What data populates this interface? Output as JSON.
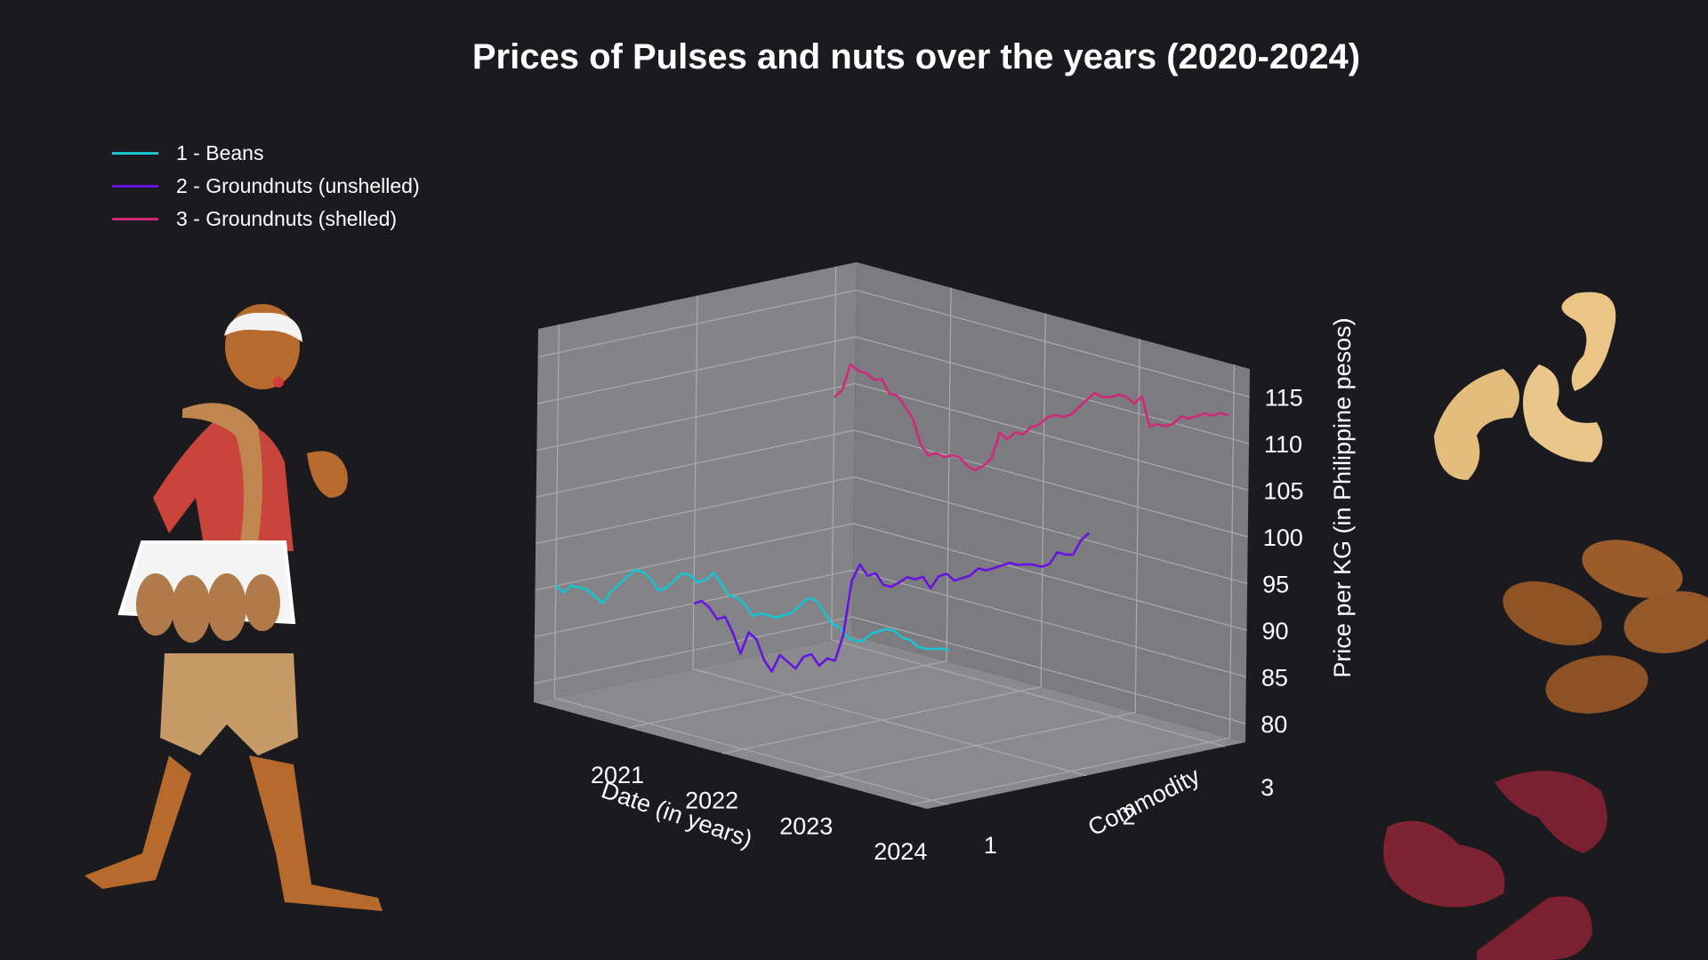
{
  "chart_data": {
    "type": "line",
    "projection": "3d",
    "title": "Prices of Pulses and nuts over the years (2020-2024)",
    "xlabel": "Date (in years)",
    "ylabel": "Commodity",
    "zlabel": "Price per KG (in Philippine pesos)",
    "x_ticks": [
      "2021",
      "2022",
      "2023",
      "2024"
    ],
    "y_ticks": [
      "1",
      "2",
      "3"
    ],
    "z_ticks": [
      "80",
      "85",
      "90",
      "95",
      "100",
      "105",
      "110",
      "115"
    ],
    "xlim": [
      "2020-01",
      "2024-03"
    ],
    "zlim": [
      78,
      118
    ],
    "grid": true,
    "legend_position": "top-left",
    "series": [
      {
        "name": "1 - Beans",
        "commodity": 1,
        "color": "#17c3cf",
        "x": [
          "2020-01",
          "2020-02",
          "2020-03",
          "2020-04",
          "2020-05",
          "2020-06",
          "2020-07",
          "2020-08",
          "2020-09",
          "2020-10",
          "2020-11",
          "2020-12",
          "2021-01",
          "2021-02",
          "2021-03",
          "2021-04",
          "2021-05",
          "2021-06",
          "2021-07",
          "2021-08",
          "2021-09",
          "2021-10",
          "2021-11",
          "2021-12",
          "2022-01",
          "2022-02",
          "2022-03",
          "2022-04",
          "2022-05",
          "2022-06",
          "2022-07",
          "2022-08",
          "2022-09",
          "2022-10",
          "2022-11",
          "2022-12",
          "2023-01",
          "2023-02",
          "2023-03",
          "2023-04",
          "2023-05",
          "2023-06",
          "2023-07",
          "2023-08",
          "2023-09",
          "2023-10",
          "2023-11",
          "2023-12",
          "2024-01",
          "2024-02",
          "2024-03"
        ],
        "values": [
          90,
          89.5,
          90.5,
          90.5,
          90.5,
          90,
          89.5,
          91,
          92,
          93,
          94,
          94,
          93.5,
          92.5,
          93,
          94,
          95,
          95,
          94.5,
          95,
          96,
          95,
          94,
          94,
          93.5,
          92.5,
          93,
          93,
          93,
          93.5,
          94,
          95,
          96,
          96,
          95,
          94,
          93.8,
          93,
          92.8,
          93,
          94,
          94.5,
          95,
          95,
          94.5,
          94.5,
          94,
          94,
          94.2,
          94.5,
          94.5
        ]
      },
      {
        "name": "2 - Groundnuts (unshelled)",
        "commodity": 2,
        "color": "#6814e0",
        "x": [
          "2020-01",
          "2020-02",
          "2020-03",
          "2020-04",
          "2020-05",
          "2020-06",
          "2020-07",
          "2020-08",
          "2020-09",
          "2020-10",
          "2020-11",
          "2020-12",
          "2021-01",
          "2021-02",
          "2021-03",
          "2021-04",
          "2021-05",
          "2021-06",
          "2021-07",
          "2021-08",
          "2021-09",
          "2021-10",
          "2021-11",
          "2021-12",
          "2022-01",
          "2022-02",
          "2022-03",
          "2022-04",
          "2022-05",
          "2022-06",
          "2022-07",
          "2022-08",
          "2022-09",
          "2022-10",
          "2022-11",
          "2022-12",
          "2023-01",
          "2023-02",
          "2023-03",
          "2023-04",
          "2023-05",
          "2023-06",
          "2023-07",
          "2023-08",
          "2023-09",
          "2023-10",
          "2023-11",
          "2023-12",
          "2024-01",
          "2024-02",
          "2024-03"
        ],
        "values": [
          85,
          85.5,
          85,
          84,
          84.5,
          83,
          81,
          83.5,
          83,
          81,
          80,
          82,
          81.5,
          81,
          82.5,
          83,
          82,
          83,
          83,
          86,
          92,
          94,
          93,
          93.5,
          92.5,
          92.5,
          93.2,
          94,
          94,
          94.5,
          93.5,
          95,
          95.5,
          95,
          95.5,
          96,
          97,
          97,
          97.5,
          98,
          98.5,
          98.5,
          98.8,
          99,
          99,
          99.5,
          101,
          101,
          101.2,
          103,
          104
        ]
      },
      {
        "name": "3 - Groundnuts (shelled)",
        "commodity": 3,
        "color": "#d0287a",
        "x": [
          "2020-01",
          "2020-02",
          "2020-03",
          "2020-04",
          "2020-05",
          "2020-06",
          "2020-07",
          "2020-08",
          "2020-09",
          "2020-10",
          "2020-11",
          "2020-12",
          "2021-01",
          "2021-02",
          "2021-03",
          "2021-04",
          "2021-05",
          "2021-06",
          "2021-07",
          "2021-08",
          "2021-09",
          "2021-10",
          "2021-11",
          "2021-12",
          "2022-01",
          "2022-02",
          "2022-03",
          "2022-04",
          "2022-05",
          "2022-06",
          "2022-07",
          "2022-08",
          "2022-09",
          "2022-10",
          "2022-11",
          "2022-12",
          "2023-01",
          "2023-02",
          "2023-03",
          "2023-04",
          "2023-05",
          "2023-06",
          "2023-07",
          "2023-08",
          "2023-09",
          "2023-10",
          "2023-11",
          "2023-12",
          "2024-01",
          "2024-02",
          "2024-03"
        ],
        "values": [
          104,
          105,
          108,
          107.5,
          107.5,
          107,
          107.3,
          106,
          106,
          105,
          104,
          101.5,
          100.5,
          101,
          100.8,
          101.2,
          101.2,
          100.5,
          100.3,
          101,
          102,
          105,
          104.5,
          105.5,
          105.5,
          106.5,
          107,
          108,
          108.5,
          108.5,
          109,
          110,
          111,
          112,
          111.8,
          112,
          112.5,
          112.5,
          112,
          113,
          110,
          110.5,
          110.5,
          111,
          112,
          112,
          112.5,
          113,
          113,
          113.5,
          113.5
        ]
      }
    ]
  }
}
